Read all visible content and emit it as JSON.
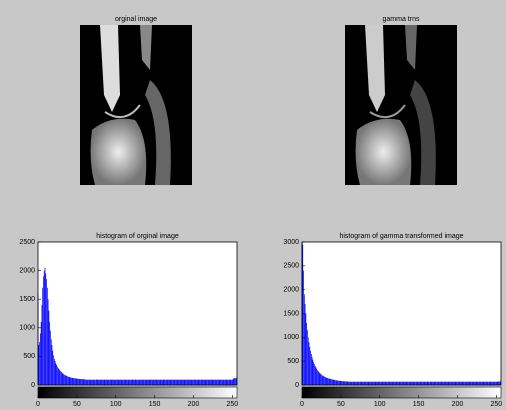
{
  "images": [
    {
      "title": "orginal image"
    },
    {
      "title": "gamma trns"
    }
  ],
  "chart_data": [
    {
      "type": "bar",
      "title": "histogram of orginal image",
      "color": "#0000ff",
      "xlim": [
        0,
        256
      ],
      "xticks": [
        0,
        50,
        100,
        150,
        200,
        250
      ],
      "ylim": [
        0,
        2500
      ],
      "yticks": [
        0,
        500,
        1000,
        1500,
        2000,
        2500
      ],
      "x": [
        0,
        1,
        2,
        3,
        4,
        5,
        6,
        7,
        8,
        9,
        10,
        11,
        12,
        13,
        14,
        15,
        16,
        17,
        18,
        19,
        20,
        21,
        22,
        23,
        24,
        25,
        26,
        27,
        28,
        29,
        30,
        31,
        32,
        33,
        34,
        35,
        36,
        37,
        38,
        39,
        40,
        41,
        42,
        43,
        44,
        45,
        46,
        47,
        48,
        49,
        50,
        51,
        52,
        53,
        54,
        55,
        56,
        57,
        58,
        59,
        60,
        61,
        62,
        63,
        64,
        65,
        66,
        67,
        68,
        69,
        70,
        71,
        72,
        73,
        74,
        75,
        76,
        77,
        78,
        79,
        80,
        81,
        82,
        83,
        84,
        85,
        86,
        87,
        88,
        89,
        90,
        91,
        92,
        93,
        94,
        95,
        96,
        97,
        98,
        99,
        100,
        101,
        102,
        103,
        104,
        105,
        106,
        107,
        108,
        109,
        110,
        111,
        112,
        113,
        114,
        115,
        116,
        117,
        118,
        119,
        120,
        121,
        122,
        123,
        124,
        125,
        126,
        127,
        128,
        129,
        130,
        131,
        132,
        133,
        134,
        135,
        136,
        137,
        138,
        139,
        140,
        141,
        142,
        143,
        144,
        145,
        146,
        147,
        148,
        149,
        150,
        151,
        152,
        153,
        154,
        155,
        156,
        157,
        158,
        159,
        160,
        161,
        162,
        163,
        164,
        165,
        166,
        167,
        168,
        169,
        170,
        171,
        172,
        173,
        174,
        175,
        176,
        177,
        178,
        179,
        180,
        181,
        182,
        183,
        184,
        185,
        186,
        187,
        188,
        189,
        190,
        191,
        192,
        193,
        194,
        195,
        196,
        197,
        198,
        199,
        200,
        201,
        202,
        203,
        204,
        205,
        206,
        207,
        208,
        209,
        210,
        211,
        212,
        213,
        214,
        215,
        216,
        217,
        218,
        219,
        220,
        221,
        222,
        223,
        224,
        225,
        226,
        227,
        228,
        229,
        230,
        231,
        232,
        233,
        234,
        235,
        236,
        237,
        238,
        239,
        240,
        241,
        242,
        243,
        244,
        245,
        246,
        247,
        248,
        249,
        250,
        251,
        252,
        253,
        254,
        255
      ],
      "values": [
        1600,
        700,
        750,
        900,
        1100,
        1400,
        1700,
        1900,
        2000,
        2050,
        1950,
        1850,
        1700,
        1500,
        1300,
        1100,
        950,
        800,
        700,
        600,
        520,
        460,
        420,
        380,
        350,
        320,
        300,
        280,
        260,
        245,
        230,
        215,
        200,
        190,
        180,
        172,
        165,
        158,
        150,
        145,
        140,
        136,
        132,
        128,
        125,
        122,
        120,
        118,
        116,
        114,
        112,
        110,
        108,
        106,
        105,
        104,
        103,
        102,
        101,
        100,
        100,
        96,
        92,
        94,
        90,
        95,
        93,
        91,
        94,
        92,
        90,
        96,
        92,
        94,
        90,
        95,
        93,
        91,
        94,
        92,
        90,
        96,
        92,
        94,
        90,
        95,
        93,
        91,
        94,
        92,
        90,
        96,
        92,
        94,
        90,
        95,
        93,
        91,
        94,
        92,
        90,
        96,
        92,
        94,
        90,
        95,
        93,
        91,
        94,
        92,
        90,
        96,
        92,
        94,
        90,
        95,
        93,
        91,
        94,
        92,
        90,
        96,
        92,
        94,
        90,
        95,
        93,
        91,
        94,
        92,
        90,
        96,
        92,
        94,
        90,
        95,
        93,
        91,
        94,
        92,
        90,
        96,
        92,
        94,
        90,
        95,
        93,
        91,
        94,
        92,
        90,
        96,
        92,
        94,
        90,
        95,
        93,
        91,
        94,
        92,
        90,
        96,
        92,
        94,
        90,
        95,
        93,
        91,
        94,
        92,
        90,
        96,
        92,
        94,
        90,
        95,
        93,
        91,
        94,
        92,
        90,
        96,
        92,
        94,
        90,
        95,
        93,
        91,
        94,
        92,
        90,
        96,
        92,
        94,
        90,
        95,
        93,
        91,
        94,
        92,
        90,
        96,
        92,
        94,
        90,
        95,
        93,
        91,
        94,
        92,
        90,
        96,
        92,
        94,
        90,
        95,
        93,
        91,
        94,
        92,
        90,
        96,
        92,
        94,
        90,
        95,
        93,
        91,
        94,
        92,
        90,
        96,
        92,
        94,
        90,
        95,
        93,
        91,
        94,
        92,
        90,
        96,
        92,
        94,
        90,
        95,
        93,
        91,
        94,
        92,
        90,
        110,
        115,
        120,
        118,
        125
      ]
    },
    {
      "type": "bar",
      "title": "histogram of gamma transformed image",
      "color": "#0000ff",
      "xlim": [
        0,
        256
      ],
      "xticks": [
        0,
        50,
        100,
        150,
        200,
        250
      ],
      "ylim": [
        0,
        3000
      ],
      "yticks": [
        0,
        500,
        1000,
        1500,
        2000,
        2500,
        3000
      ],
      "x": [
        0,
        1,
        2,
        3,
        4,
        5,
        6,
        7,
        8,
        9,
        10,
        11,
        12,
        13,
        14,
        15,
        16,
        17,
        18,
        19,
        20,
        21,
        22,
        23,
        24,
        25,
        26,
        27,
        28,
        29,
        30,
        31,
        32,
        33,
        34,
        35,
        36,
        37,
        38,
        39,
        40,
        41,
        42,
        43,
        44,
        45,
        46,
        47,
        48,
        49,
        50,
        51,
        52,
        53,
        54,
        55,
        56,
        57,
        58,
        59,
        60,
        61,
        62,
        63,
        64,
        65,
        66,
        67,
        68,
        69,
        70,
        71,
        72,
        73,
        74,
        75,
        76,
        77,
        78,
        79,
        80,
        81,
        82,
        83,
        84,
        85,
        86,
        87,
        88,
        89,
        90,
        91,
        92,
        93,
        94,
        95,
        96,
        97,
        98,
        99,
        100,
        101,
        102,
        103,
        104,
        105,
        106,
        107,
        108,
        109,
        110,
        111,
        112,
        113,
        114,
        115,
        116,
        117,
        118,
        119,
        120,
        121,
        122,
        123,
        124,
        125,
        126,
        127,
        128,
        129,
        130,
        131,
        132,
        133,
        134,
        135,
        136,
        137,
        138,
        139,
        140,
        141,
        142,
        143,
        144,
        145,
        146,
        147,
        148,
        149,
        150,
        151,
        152,
        153,
        154,
        155,
        156,
        157,
        158,
        159,
        160,
        161,
        162,
        163,
        164,
        165,
        166,
        167,
        168,
        169,
        170,
        171,
        172,
        173,
        174,
        175,
        176,
        177,
        178,
        179,
        180,
        181,
        182,
        183,
        184,
        185,
        186,
        187,
        188,
        189,
        190,
        191,
        192,
        193,
        194,
        195,
        196,
        197,
        198,
        199,
        200,
        201,
        202,
        203,
        204,
        205,
        206,
        207,
        208,
        209,
        210,
        211,
        212,
        213,
        214,
        215,
        216,
        217,
        218,
        219,
        220,
        221,
        222,
        223,
        224,
        225,
        226,
        227,
        228,
        229,
        230,
        231,
        232,
        233,
        234,
        235,
        236,
        237,
        238,
        239,
        240,
        241,
        242,
        243,
        244,
        245,
        246,
        247,
        248,
        249,
        250,
        251,
        252,
        253,
        254,
        255
      ],
      "values": [
        3000,
        2950,
        2400,
        1900,
        1700,
        1500,
        1300,
        1150,
        1000,
        900,
        800,
        720,
        650,
        590,
        530,
        480,
        440,
        400,
        370,
        340,
        310,
        290,
        270,
        250,
        235,
        220,
        205,
        195,
        185,
        175,
        165,
        158,
        150,
        145,
        140,
        135,
        130,
        125,
        120,
        116,
        112,
        108,
        105,
        102,
        99,
        96,
        93,
        90,
        88,
        86,
        84,
        82,
        80,
        79,
        78,
        77,
        76,
        75,
        74,
        73,
        72,
        72,
        68,
        70,
        66,
        71,
        69,
        67,
        70,
        68,
        66,
        72,
        68,
        70,
        66,
        71,
        69,
        67,
        70,
        68,
        66,
        72,
        68,
        70,
        66,
        71,
        69,
        67,
        70,
        68,
        66,
        72,
        68,
        70,
        66,
        71,
        69,
        67,
        70,
        68,
        66,
        72,
        68,
        70,
        66,
        71,
        69,
        67,
        70,
        68,
        66,
        72,
        68,
        70,
        66,
        71,
        69,
        67,
        70,
        68,
        66,
        72,
        68,
        70,
        66,
        71,
        69,
        67,
        70,
        68,
        66,
        72,
        68,
        70,
        66,
        71,
        69,
        67,
        70,
        68,
        66,
        72,
        68,
        70,
        66,
        71,
        69,
        67,
        70,
        68,
        66,
        72,
        68,
        70,
        66,
        71,
        69,
        67,
        70,
        68,
        66,
        72,
        68,
        70,
        66,
        71,
        69,
        67,
        70,
        68,
        66,
        72,
        68,
        70,
        66,
        71,
        69,
        67,
        70,
        68,
        66,
        72,
        68,
        70,
        66,
        71,
        69,
        67,
        70,
        68,
        66,
        72,
        68,
        70,
        66,
        71,
        69,
        67,
        70,
        68,
        66,
        72,
        68,
        70,
        66,
        71,
        69,
        67,
        70,
        68,
        66,
        72,
        68,
        70,
        66,
        71,
        69,
        67,
        70,
        68,
        66,
        72,
        68,
        70,
        66,
        71,
        69,
        67,
        70,
        68,
        66,
        72,
        68,
        70,
        66,
        71,
        69,
        67,
        70,
        68,
        66,
        72,
        68,
        70,
        66,
        71,
        69,
        67,
        70,
        68,
        66,
        70,
        72,
        75,
        74,
        78
      ]
    }
  ]
}
